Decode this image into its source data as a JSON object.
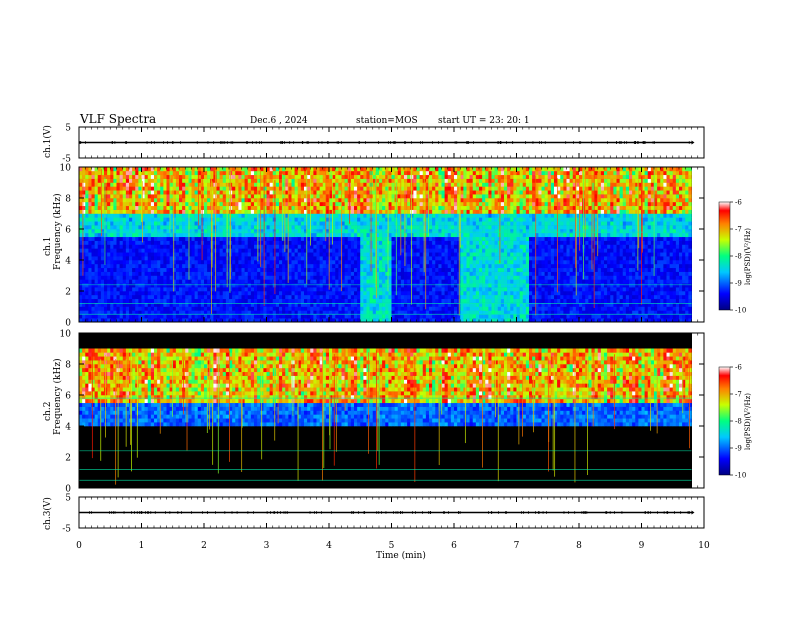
{
  "header": {
    "title": "VLF Spectra",
    "date": "Dec.6 , 2024",
    "station": "station=MOS",
    "start": "start UT = 23: 20: 1"
  },
  "chart_data": [
    {
      "type": "line",
      "panel": "ch1-voltage",
      "ylabel": "ch.1(V)",
      "ylim": [
        -5,
        5
      ],
      "yticks": [
        "5",
        "-5"
      ],
      "x": [
        0,
        9.8
      ],
      "values": [
        0,
        0
      ]
    },
    {
      "type": "heatmap",
      "panel": "ch1-spectrogram",
      "ylabel": "ch.1 Frequency (kHz)",
      "xlim": [
        0,
        10
      ],
      "ylim": [
        0,
        10
      ],
      "yticks": [
        "0",
        "2",
        "4",
        "6",
        "8",
        "10"
      ],
      "data_extent_min": 9.8,
      "colorbar": {
        "label": "log(PSD)(V²/Hz)",
        "range": [
          -10,
          -6
        ],
        "ticks": [
          "-6",
          "-7",
          "-8",
          "-9",
          "-10"
        ]
      },
      "dominant_band_khz": [
        7,
        10
      ],
      "broadband_bursts_min": [
        [
          4.5,
          5.0
        ],
        [
          6.1,
          7.2
        ]
      ]
    },
    {
      "type": "heatmap",
      "panel": "ch2-spectrogram",
      "ylabel": "ch.2 Frequency (kHz)",
      "xlim": [
        0,
        10
      ],
      "ylim": [
        0,
        10
      ],
      "yticks": [
        "0",
        "2",
        "4",
        "6",
        "8",
        "10"
      ],
      "data_extent_min": 9.8,
      "colorbar": {
        "label": "log(PSD)(V²/Hz)",
        "range": [
          -10,
          -6
        ],
        "ticks": [
          "-6",
          "-7",
          "-8",
          "-9",
          "-10"
        ]
      },
      "dominant_band_khz": [
        5.5,
        9
      ]
    },
    {
      "type": "line",
      "panel": "ch3-voltage",
      "ylabel": "ch.3(V)",
      "ylim": [
        -5,
        5
      ],
      "yticks": [
        "5",
        "-5"
      ],
      "x": [
        0,
        9.8
      ],
      "values": [
        0,
        0
      ]
    }
  ],
  "xaxis": {
    "label": "Time (min)",
    "ticks": [
      "0",
      "1",
      "2",
      "3",
      "4",
      "5",
      "6",
      "7",
      "8",
      "9",
      "10"
    ],
    "range": [
      0,
      10
    ]
  }
}
